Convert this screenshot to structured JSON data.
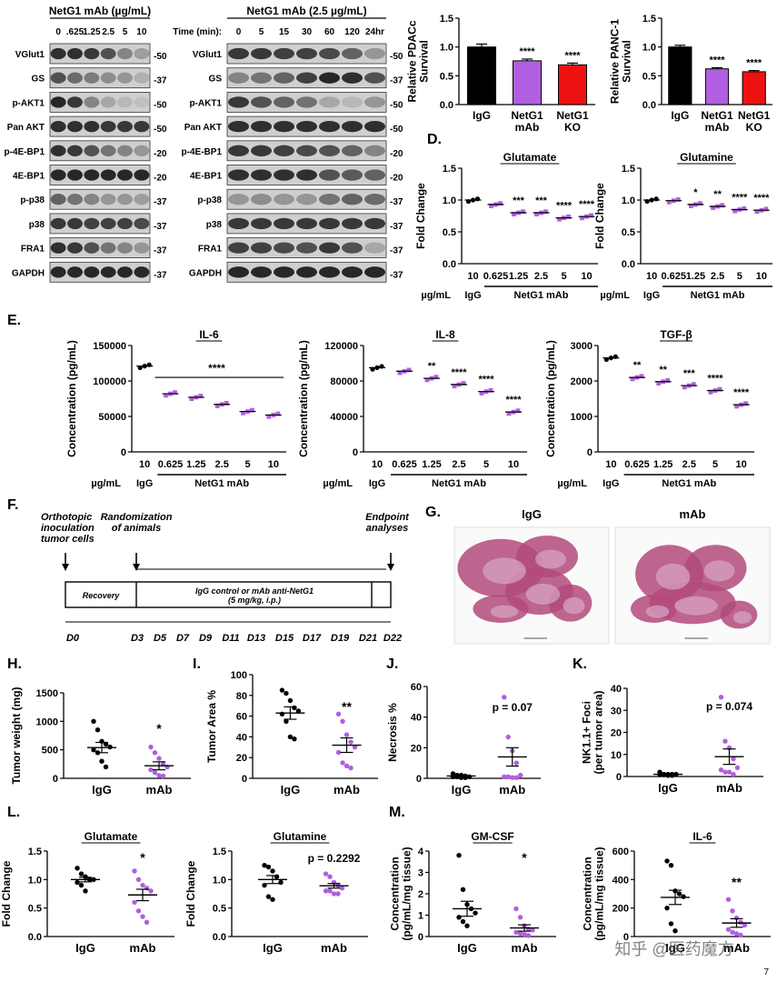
{
  "blot1": {
    "header": "NetG1 mAb (µg/mL)",
    "lanes": [
      "0",
      ".625",
      "1.25",
      "2.5",
      "5",
      "10"
    ],
    "rows": [
      {
        "label": "VGlut1",
        "mw": "-50",
        "int": [
          0.9,
          0.9,
          0.85,
          0.7,
          0.4,
          0.25
        ]
      },
      {
        "label": "GS",
        "mw": "-37",
        "int": [
          0.7,
          0.55,
          0.45,
          0.35,
          0.3,
          0.15
        ]
      },
      {
        "label": "p-AKT1",
        "mw": "-50",
        "int": [
          0.95,
          0.85,
          0.4,
          0.2,
          0.1,
          0.05
        ]
      },
      {
        "label": "Pan AKT",
        "mw": "-50",
        "int": [
          0.9,
          0.9,
          0.9,
          0.85,
          0.85,
          0.85
        ]
      },
      {
        "label": "p-4E-BP1",
        "mw": "-20",
        "int": [
          0.9,
          0.85,
          0.7,
          0.5,
          0.4,
          0.3
        ]
      },
      {
        "label": "4E-BP1",
        "mw": "-20",
        "int": [
          0.95,
          0.95,
          0.95,
          0.95,
          0.95,
          0.95
        ]
      },
      {
        "label": "p-p38",
        "mw": "-37",
        "int": [
          0.6,
          0.5,
          0.4,
          0.3,
          0.3,
          0.25
        ]
      },
      {
        "label": "p38",
        "mw": "-37",
        "int": [
          0.85,
          0.85,
          0.8,
          0.8,
          0.8,
          0.75
        ]
      },
      {
        "label": "FRA1",
        "mw": "-37",
        "int": [
          0.9,
          0.85,
          0.7,
          0.5,
          0.4,
          0.3
        ]
      },
      {
        "label": "GAPDH",
        "mw": "-37",
        "int": [
          0.95,
          0.95,
          0.95,
          0.95,
          0.95,
          0.95
        ]
      }
    ]
  },
  "blot2": {
    "header": "NetG1 mAb (2.5 µg/mL)",
    "time_label": "Time (min):",
    "lanes": [
      "0",
      "5",
      "15",
      "30",
      "60",
      "120",
      "24hr"
    ],
    "rows": [
      {
        "label": "VGlut1",
        "mw": "-50",
        "int": [
          0.85,
          0.85,
          0.8,
          0.8,
          0.75,
          0.6,
          0.3
        ]
      },
      {
        "label": "GS",
        "mw": "-37",
        "int": [
          0.4,
          0.5,
          0.6,
          0.8,
          0.95,
          0.9,
          0.7
        ]
      },
      {
        "label": "p-AKT1",
        "mw": "-50",
        "int": [
          0.85,
          0.7,
          0.6,
          0.5,
          0.2,
          0.1,
          0.3
        ]
      },
      {
        "label": "Pan AKT",
        "mw": "-50",
        "int": [
          0.9,
          0.9,
          0.9,
          0.9,
          0.9,
          0.9,
          0.9
        ]
      },
      {
        "label": "p-4E-BP1",
        "mw": "-20",
        "int": [
          0.85,
          0.85,
          0.8,
          0.75,
          0.7,
          0.6,
          0.4
        ]
      },
      {
        "label": "4E-BP1",
        "mw": "-20",
        "int": [
          0.9,
          0.9,
          0.9,
          0.9,
          0.7,
          0.65,
          0.6
        ]
      },
      {
        "label": "p-p38",
        "mw": "-37",
        "int": [
          0.3,
          0.35,
          0.3,
          0.3,
          0.5,
          0.6,
          0.55
        ]
      },
      {
        "label": "p38",
        "mw": "-37",
        "int": [
          0.85,
          0.85,
          0.85,
          0.85,
          0.85,
          0.85,
          0.85
        ]
      },
      {
        "label": "FRA1",
        "mw": "-37",
        "int": [
          0.8,
          0.8,
          0.75,
          0.7,
          0.85,
          0.7,
          0.2
        ]
      },
      {
        "label": "GAPDH",
        "mw": "-37",
        "int": [
          0.95,
          0.95,
          0.95,
          0.95,
          0.95,
          0.95,
          0.95
        ]
      }
    ]
  },
  "chart_data": [
    {
      "id": "pdac",
      "type": "bar",
      "ylabel": "Relative PDACc\nSurvival",
      "categories": [
        "IgG",
        "NetG1\nmAb",
        "NetG1\nKO"
      ],
      "values": [
        1.0,
        0.76,
        0.69
      ],
      "err": [
        0.05,
        0.03,
        0.03
      ],
      "colors": [
        "#000000",
        "#b05fe0",
        "#ee1111"
      ],
      "stars": [
        "",
        "****",
        "****"
      ],
      "ylim": [
        0,
        1.5
      ],
      "yticks": [
        "0.0",
        "0.5",
        "1.0",
        "1.5"
      ]
    },
    {
      "id": "panc1",
      "type": "bar",
      "ylabel": "Relative PANC-1\nSurvival",
      "categories": [
        "IgG",
        "NetG1\nmAb",
        "NetG1\nKO"
      ],
      "values": [
        1.0,
        0.62,
        0.57
      ],
      "err": [
        0.03,
        0.02,
        0.02
      ],
      "colors": [
        "#000000",
        "#b05fe0",
        "#ee1111"
      ],
      "stars": [
        "",
        "****",
        "****"
      ],
      "ylim": [
        0,
        1.5
      ],
      "yticks": [
        "0.0",
        "0.5",
        "1.0",
        "1.5"
      ]
    },
    {
      "id": "d_glu",
      "type": "scatter",
      "panel": "D.",
      "title": "Glutamate",
      "ylabel": "Fold Change",
      "ylim": [
        0,
        1.5
      ],
      "yticks": [
        "0.0",
        "0.5",
        "1.0",
        "1.5"
      ],
      "doses": [
        "10",
        "0.625",
        "1.25",
        "2.5",
        "5",
        "10"
      ],
      "means": [
        1.0,
        0.93,
        0.8,
        0.8,
        0.72,
        0.74
      ],
      "stars": [
        "",
        "",
        "***",
        "***",
        "****",
        "****"
      ],
      "group_label": "NetG1 mAb",
      "unit": "µg/mL",
      "ctrl": "IgG"
    },
    {
      "id": "d_gln",
      "type": "scatter",
      "title": "Glutamine",
      "ylabel": "Fold Change",
      "ylim": [
        0,
        1.5
      ],
      "yticks": [
        "0.0",
        "0.5",
        "1.0",
        "1.5"
      ],
      "doses": [
        "10",
        "0.625",
        "1.25",
        "2.5",
        "5",
        "10"
      ],
      "means": [
        1.0,
        0.99,
        0.93,
        0.9,
        0.85,
        0.84
      ],
      "stars": [
        "",
        "",
        "*",
        "**",
        "****",
        "****"
      ],
      "group_label": "NetG1 mAb",
      "unit": "µg/mL",
      "ctrl": "IgG"
    },
    {
      "id": "e_il6",
      "type": "scatter",
      "panel": "E.",
      "title": "IL-6",
      "ylabel": "Concentration (pg/mL)",
      "ylim": [
        0,
        150000
      ],
      "yticks": [
        "0",
        "50000",
        "100000",
        "150000"
      ],
      "doses": [
        "10",
        "0.625",
        "1.25",
        "2.5",
        "5",
        "10"
      ],
      "means": [
        121000,
        82000,
        77000,
        67000,
        57000,
        52000
      ],
      "stars": [
        "****"
      ],
      "group_label": "NetG1 mAb",
      "unit": "µg/mL",
      "ctrl": "IgG"
    },
    {
      "id": "e_il8",
      "type": "scatter",
      "title": "IL-8",
      "ylabel": "Concentration (pg/mL)",
      "ylim": [
        0,
        120000
      ],
      "yticks": [
        "0",
        "40000",
        "80000",
        "120000"
      ],
      "doses": [
        "10",
        "0.625",
        "1.25",
        "2.5",
        "5",
        "10"
      ],
      "means": [
        95000,
        91000,
        83000,
        76000,
        68000,
        45000
      ],
      "stars": [
        "",
        "",
        "**",
        "****",
        "****",
        "****"
      ],
      "group_label": "NetG1 mAb",
      "unit": "µg/mL",
      "ctrl": "IgG"
    },
    {
      "id": "e_tgf",
      "type": "scatter",
      "title": "TGF-β",
      "ylabel": "Concentration (pg/mL)",
      "ylim": [
        0,
        3000
      ],
      "yticks": [
        "0",
        "1000",
        "2000",
        "3000"
      ],
      "doses": [
        "10",
        "0.625",
        "1.25",
        "2.5",
        "5",
        "10"
      ],
      "means": [
        2650,
        2100,
        1980,
        1870,
        1730,
        1330
      ],
      "stars": [
        "",
        "**",
        "**",
        "***",
        "****",
        "****"
      ],
      "group_label": "NetG1 mAb",
      "unit": "µg/mL",
      "ctrl": "IgG"
    },
    {
      "id": "h",
      "type": "scatter",
      "panel": "H.",
      "ylabel": "Tumor weight (mg)",
      "ylim": [
        0,
        1500
      ],
      "yticks": [
        "0",
        "500",
        "1000",
        "1500"
      ],
      "categories": [
        "IgG",
        "mAb"
      ],
      "means": [
        540,
        220
      ],
      "sem": [
        90,
        70
      ],
      "igg": [
        1000,
        850,
        650,
        600,
        550,
        500,
        450,
        300,
        200
      ],
      "mab": [
        550,
        450,
        350,
        250,
        200,
        150,
        100,
        50,
        40
      ],
      "annot": "*"
    },
    {
      "id": "i",
      "type": "scatter",
      "panel": "I.",
      "ylabel": "Tumor Area %",
      "ylim": [
        0,
        100
      ],
      "yticks": [
        "0",
        "20",
        "40",
        "60",
        "80",
        "100"
      ],
      "categories": [
        "IgG",
        "mAb"
      ],
      "means": [
        63,
        32
      ],
      "sem": [
        6,
        7
      ],
      "igg": [
        85,
        82,
        75,
        68,
        65,
        62,
        55,
        40,
        38
      ],
      "mab": [
        62,
        55,
        42,
        35,
        30,
        25,
        15,
        12,
        10
      ],
      "annot": "**"
    },
    {
      "id": "j",
      "type": "scatter",
      "panel": "J.",
      "ylabel": "Necrosis %",
      "ylim": [
        0,
        60
      ],
      "yticks": [
        "0",
        "20",
        "40",
        "60"
      ],
      "categories": [
        "IgG",
        "mAb"
      ],
      "means": [
        1.5,
        14
      ],
      "sem": [
        0.5,
        6
      ],
      "igg": [
        3,
        2,
        2,
        1.5,
        1,
        1,
        1,
        0.5,
        0.5
      ],
      "mab": [
        53,
        27,
        18,
        10,
        2,
        1,
        1,
        0.5,
        0.5
      ],
      "annot": "p = 0.07"
    },
    {
      "id": "k",
      "type": "scatter",
      "panel": "K.",
      "ylabel": "NK1.1+ Foci\n(per tumor area)",
      "ylim": [
        0,
        40
      ],
      "yticks": [
        "0",
        "10",
        "20",
        "30",
        "40"
      ],
      "categories": [
        "IgG",
        "mAb"
      ],
      "means": [
        1,
        9
      ],
      "sem": [
        0.3,
        3.5
      ],
      "igg": [
        2,
        1,
        1,
        1,
        1,
        0.8,
        0.8,
        0.5,
        0.5
      ],
      "mab": [
        36,
        16,
        13,
        8,
        4,
        3,
        2,
        2,
        1
      ],
      "annot": "p = 0.074"
    },
    {
      "id": "l_glu",
      "type": "scatter",
      "panel": "L.",
      "title": "Glutamate",
      "ylabel": "Fold Change",
      "ylim": [
        0,
        1.5
      ],
      "yticks": [
        "0.0",
        "0.5",
        "1.0",
        "1.5"
      ],
      "categories": [
        "IgG",
        "mAb"
      ],
      "means": [
        1.0,
        0.73
      ],
      "sem": [
        0.04,
        0.1
      ],
      "igg": [
        1.2,
        1.1,
        1.05,
        1.0,
        1.0,
        0.95,
        0.9,
        0.8
      ],
      "mab": [
        1.15,
        1.0,
        0.9,
        0.85,
        0.8,
        0.6,
        0.45,
        0.35,
        0.25
      ],
      "annot": "*"
    },
    {
      "id": "l_gln",
      "type": "scatter",
      "title": "Glutamine",
      "ylabel": "Fold Change",
      "ylim": [
        0,
        1.5
      ],
      "yticks": [
        "0.0",
        "0.5",
        "1.0",
        "1.5"
      ],
      "categories": [
        "IgG",
        "mAb"
      ],
      "means": [
        1.0,
        0.89
      ],
      "sem": [
        0.07,
        0.04
      ],
      "igg": [
        1.25,
        1.22,
        1.15,
        1.05,
        0.95,
        0.9,
        0.7,
        0.65
      ],
      "mab": [
        1.1,
        1.05,
        0.95,
        0.9,
        0.85,
        0.8,
        0.8,
        0.75,
        0.75
      ],
      "annot": "p = 0.2292"
    },
    {
      "id": "m_gm",
      "type": "scatter",
      "panel": "M.",
      "title": "GM-CSF",
      "ylabel": "Concentration\n(pg/mL/mg tissue)",
      "ylim": [
        0,
        4
      ],
      "yticks": [
        "0",
        "1",
        "2",
        "3",
        "4"
      ],
      "categories": [
        "IgG",
        "mAb"
      ],
      "means": [
        1.3,
        0.4
      ],
      "sem": [
        0.35,
        0.15
      ],
      "igg": [
        3.8,
        2.2,
        1.5,
        1.3,
        1.1,
        0.9,
        0.7,
        0.5
      ],
      "mab": [
        1.3,
        0.9,
        0.5,
        0.35,
        0.3,
        0.2,
        0.15,
        0.1,
        0.05
      ],
      "annot": "*"
    },
    {
      "id": "m_il6",
      "type": "scatter",
      "title": "IL-6",
      "ylabel": "Concentration\n(pg/mL/mg tissue)",
      "ylim": [
        0,
        600
      ],
      "yticks": [
        "0",
        "200",
        "400",
        "600"
      ],
      "categories": [
        "IgG",
        "mAb"
      ],
      "means": [
        275,
        95
      ],
      "sem": [
        50,
        30
      ],
      "igg": [
        530,
        500,
        320,
        300,
        280,
        200,
        90,
        40
      ],
      "mab": [
        260,
        180,
        130,
        100,
        80,
        50,
        30,
        20,
        10
      ],
      "annot": "**"
    }
  ],
  "timeline": {
    "panel": "F.",
    "top_labels": [
      "Orthotopic\ninoculation\ntumor cells",
      "Randomization\nof animals",
      "Endpoint\nanalyses"
    ],
    "recovery": "Recovery",
    "treatment": "IgG control or mAb anti-NetG1\n(5 mg/kg, i.p.)",
    "days": [
      "D0",
      "D3",
      "D5",
      "D7",
      "D9",
      "D11",
      "D13",
      "D15",
      "D17",
      "D19",
      "D21",
      "D22"
    ]
  },
  "histology": {
    "panel": "G.",
    "labels": [
      "IgG",
      "mAb"
    ]
  },
  "watermark": "知乎 @医药魔方",
  "page_number": "7"
}
